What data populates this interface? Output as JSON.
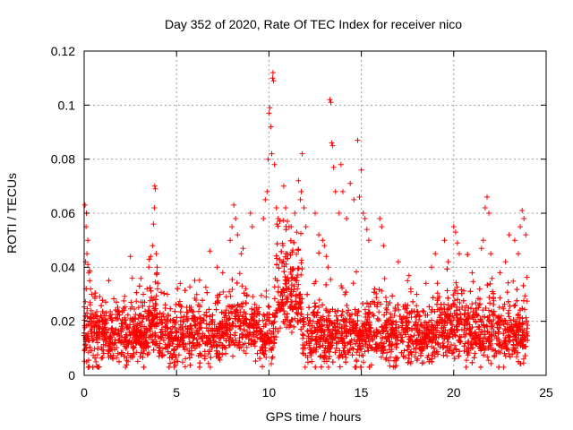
{
  "chart_data": {
    "type": "scatter",
    "title": "Day 352 of 2020, Rate Of TEC Index for receiver nico",
    "xlabel": "GPS time / hours",
    "ylabel": "ROTI / TECUs",
    "xlim": [
      0,
      25
    ],
    "ylim": [
      0,
      0.12
    ],
    "xticks": [
      0,
      5,
      10,
      15,
      20,
      25
    ],
    "xtick_labels": [
      "0",
      "5",
      "10",
      "15",
      "20",
      "25"
    ],
    "yticks": [
      0,
      0.02,
      0.04,
      0.06,
      0.08,
      0.1,
      0.12
    ],
    "ytick_labels": [
      "0",
      "0.02",
      "0.04",
      "0.06",
      "0.08",
      "0.1",
      "0.12"
    ],
    "grid": true,
    "marker": "+",
    "color": "#ff0000",
    "series": [
      {
        "name": "",
        "points": [
          [
            0.05,
            0.063
          ],
          [
            0.1,
            0.055
          ],
          [
            0.12,
            0.06
          ],
          [
            0.15,
            0.045
          ],
          [
            0.2,
            0.05
          ],
          [
            0.25,
            0.038
          ],
          [
            0.3,
            0.035
          ],
          [
            0.35,
            0.032
          ],
          [
            0.4,
            0.03
          ],
          [
            0.2,
            0.041
          ],
          [
            2.5,
            0.044
          ],
          [
            2.6,
            0.036
          ],
          [
            3.2,
            0.03
          ],
          [
            3.4,
            0.032
          ],
          [
            3.5,
            0.04
          ],
          [
            3.6,
            0.044
          ],
          [
            3.7,
            0.048
          ],
          [
            3.75,
            0.056
          ],
          [
            3.8,
            0.062
          ],
          [
            3.82,
            0.07
          ],
          [
            3.85,
            0.069
          ],
          [
            3.9,
            0.045
          ],
          [
            3.95,
            0.04
          ],
          [
            4.5,
            0.03
          ],
          [
            5.2,
            0.034
          ],
          [
            6.8,
            0.046
          ],
          [
            7.2,
            0.04
          ],
          [
            7.5,
            0.038
          ],
          [
            7.9,
            0.05
          ],
          [
            8.0,
            0.055
          ],
          [
            8.1,
            0.063
          ],
          [
            8.2,
            0.058
          ],
          [
            8.3,
            0.052
          ],
          [
            8.5,
            0.045
          ],
          [
            8.6,
            0.047
          ],
          [
            9.0,
            0.06
          ],
          [
            9.1,
            0.055
          ],
          [
            9.7,
            0.058
          ],
          [
            9.8,
            0.065
          ],
          [
            9.9,
            0.068
          ],
          [
            9.95,
            0.08
          ],
          [
            10.0,
            0.097
          ],
          [
            10.05,
            0.099
          ],
          [
            10.1,
            0.092
          ],
          [
            10.15,
            0.082
          ],
          [
            10.2,
            0.11
          ],
          [
            10.22,
            0.112
          ],
          [
            10.25,
            0.109
          ],
          [
            10.3,
            0.078
          ],
          [
            10.4,
            0.062
          ],
          [
            10.5,
            0.058
          ],
          [
            10.8,
            0.07
          ],
          [
            10.9,
            0.062
          ],
          [
            11.0,
            0.057
          ],
          [
            11.2,
            0.055
          ],
          [
            11.4,
            0.06
          ],
          [
            11.5,
            0.053
          ],
          [
            11.6,
            0.072
          ],
          [
            11.7,
            0.065
          ],
          [
            11.75,
            0.068
          ],
          [
            11.8,
            0.082
          ],
          [
            11.9,
            0.062
          ],
          [
            12.0,
            0.055
          ],
          [
            12.5,
            0.06
          ],
          [
            12.7,
            0.052
          ],
          [
            12.9,
            0.05
          ],
          [
            13.0,
            0.048
          ],
          [
            13.1,
            0.044
          ],
          [
            13.2,
            0.04
          ],
          [
            13.3,
            0.102
          ],
          [
            13.35,
            0.101
          ],
          [
            13.4,
            0.086
          ],
          [
            13.45,
            0.085
          ],
          [
            13.5,
            0.077
          ],
          [
            13.6,
            0.068
          ],
          [
            13.8,
            0.06
          ],
          [
            13.9,
            0.078
          ],
          [
            14.0,
            0.068
          ],
          [
            14.2,
            0.058
          ],
          [
            14.4,
            0.071
          ],
          [
            14.6,
            0.065
          ],
          [
            14.8,
            0.087
          ],
          [
            14.9,
            0.066
          ],
          [
            15.0,
            0.076
          ],
          [
            15.1,
            0.06
          ],
          [
            15.2,
            0.058
          ],
          [
            15.3,
            0.054
          ],
          [
            15.4,
            0.05
          ],
          [
            16.0,
            0.058
          ],
          [
            16.1,
            0.055
          ],
          [
            16.2,
            0.048
          ],
          [
            17.0,
            0.042
          ],
          [
            17.5,
            0.035
          ],
          [
            18.0,
            0.03
          ],
          [
            18.5,
            0.034
          ],
          [
            18.8,
            0.04
          ],
          [
            19.0,
            0.045
          ],
          [
            19.5,
            0.05
          ],
          [
            19.7,
            0.042
          ],
          [
            20.0,
            0.055
          ],
          [
            20.1,
            0.053
          ],
          [
            20.2,
            0.049
          ],
          [
            20.3,
            0.045
          ],
          [
            21.0,
            0.038
          ],
          [
            21.5,
            0.047
          ],
          [
            21.6,
            0.05
          ],
          [
            21.7,
            0.062
          ],
          [
            21.8,
            0.066
          ],
          [
            21.9,
            0.06
          ],
          [
            22.0,
            0.045
          ],
          [
            22.5,
            0.038
          ],
          [
            22.8,
            0.042
          ],
          [
            23.0,
            0.052
          ],
          [
            23.3,
            0.05
          ],
          [
            23.5,
            0.045
          ],
          [
            23.6,
            0.055
          ],
          [
            23.7,
            0.061
          ],
          [
            23.8,
            0.058
          ],
          [
            23.9,
            0.052
          ]
        ],
        "dense_band": {
          "x_range": [
            0,
            24
          ],
          "typical_y_range": [
            0.005,
            0.03
          ],
          "median_y": 0.015
        }
      }
    ]
  }
}
